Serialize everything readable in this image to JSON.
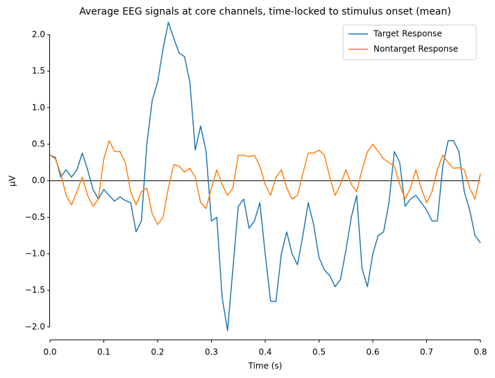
{
  "chart_data": {
    "type": "line",
    "title": "Average EEG signals at core channels, time-locked to stimulus onset (mean)",
    "xlabel": "Time (s)",
    "ylabel": "µV",
    "x": [
      0,
      0.01,
      0.02,
      0.03,
      0.04,
      0.05,
      0.06,
      0.07,
      0.08,
      0.09,
      0.1,
      0.11,
      0.12,
      0.13,
      0.14,
      0.15,
      0.16,
      0.17,
      0.18,
      0.19,
      0.2,
      0.21,
      0.22,
      0.23,
      0.24,
      0.25,
      0.26,
      0.27,
      0.28,
      0.29,
      0.3,
      0.31,
      0.32,
      0.33,
      0.34,
      0.35,
      0.36,
      0.37,
      0.38,
      0.39,
      0.4,
      0.41,
      0.42,
      0.43,
      0.44,
      0.45,
      0.46,
      0.47,
      0.48,
      0.49,
      0.5,
      0.51,
      0.52,
      0.53,
      0.54,
      0.55,
      0.56,
      0.57,
      0.58,
      0.59,
      0.6,
      0.61,
      0.62,
      0.63,
      0.64,
      0.65,
      0.66,
      0.67,
      0.68,
      0.69,
      0.7,
      0.71,
      0.72,
      0.73,
      0.74,
      0.75,
      0.76,
      0.77,
      0.78,
      0.79,
      0.8
    ],
    "series": [
      {
        "name": "Target Response",
        "color": "#1f77b4",
        "values": [
          0.35,
          0.32,
          0.05,
          0.15,
          0.05,
          0.15,
          0.38,
          0.15,
          -0.12,
          -0.25,
          -0.12,
          -0.2,
          -0.28,
          -0.22,
          -0.27,
          -0.3,
          -0.7,
          -0.55,
          0.5,
          1.1,
          1.35,
          1.8,
          2.17,
          1.95,
          1.75,
          1.7,
          1.35,
          0.42,
          0.75,
          0.4,
          -0.55,
          -0.5,
          -1.6,
          -2.05,
          -1.2,
          -0.35,
          -0.25,
          -0.65,
          -0.55,
          -0.3,
          -1.0,
          -1.65,
          -1.65,
          -1.0,
          -0.7,
          -1.0,
          -1.15,
          -0.75,
          -0.3,
          -0.6,
          -1.05,
          -1.22,
          -1.3,
          -1.45,
          -1.35,
          -0.95,
          -0.5,
          -0.2,
          -1.2,
          -1.45,
          -1.0,
          -0.75,
          -0.7,
          -0.3,
          0.4,
          0.25,
          -0.35,
          -0.25,
          -0.2,
          -0.3,
          -0.4,
          -0.55,
          -0.55,
          0.2,
          0.55,
          0.55,
          0.4,
          -0.15,
          -0.4,
          -0.75,
          -0.85
        ]
      },
      {
        "name": "Nontarget Response",
        "color": "#ff7f0e",
        "values": [
          0.35,
          0.3,
          0.1,
          -0.2,
          -0.33,
          -0.15,
          0.05,
          -0.2,
          -0.35,
          -0.25,
          0.3,
          0.55,
          0.4,
          0.4,
          0.25,
          -0.15,
          -0.33,
          -0.15,
          -0.1,
          -0.45,
          -0.6,
          -0.5,
          -0.1,
          0.22,
          0.2,
          0.12,
          0.17,
          0.05,
          -0.3,
          -0.38,
          -0.1,
          0.15,
          -0.05,
          -0.2,
          -0.1,
          0.35,
          0.35,
          0.33,
          0.35,
          0.2,
          -0.05,
          -0.2,
          0.05,
          0.15,
          -0.1,
          -0.25,
          -0.2,
          0.1,
          0.38,
          0.38,
          0.42,
          0.35,
          0.05,
          -0.2,
          -0.05,
          0.15,
          -0.05,
          -0.15,
          0.15,
          0.4,
          0.5,
          0.4,
          0.3,
          0.25,
          0.2,
          -0.05,
          -0.25,
          -0.1,
          0.15,
          -0.1,
          -0.3,
          -0.15,
          0.15,
          0.35,
          0.25,
          0.17,
          0.18,
          0.15,
          -0.1,
          -0.25,
          0.1
        ]
      }
    ],
    "xlim": [
      0,
      0.8
    ],
    "xticks": [
      {
        "value": 0,
        "label": "0.0"
      },
      0.1,
      0.2,
      0.3,
      0.4,
      0.5,
      0.6,
      0.7,
      0.8
    ],
    "ylim": [
      -2.13,
      2.19
    ],
    "yticks": [
      {
        "value": -2,
        "label": "−2.0"
      },
      {
        "value": -1.5,
        "label": "−1.5"
      },
      {
        "value": -1,
        "label": "−1.0"
      },
      {
        "value": -0.5,
        "label": "−0.5"
      },
      {
        "value": 0,
        "label": "0.0"
      },
      0.5,
      {
        "value": 1,
        "label": "1.0"
      },
      1.5,
      {
        "value": 2,
        "label": "2.0"
      }
    ],
    "hline": 0,
    "legend": "upper right"
  }
}
